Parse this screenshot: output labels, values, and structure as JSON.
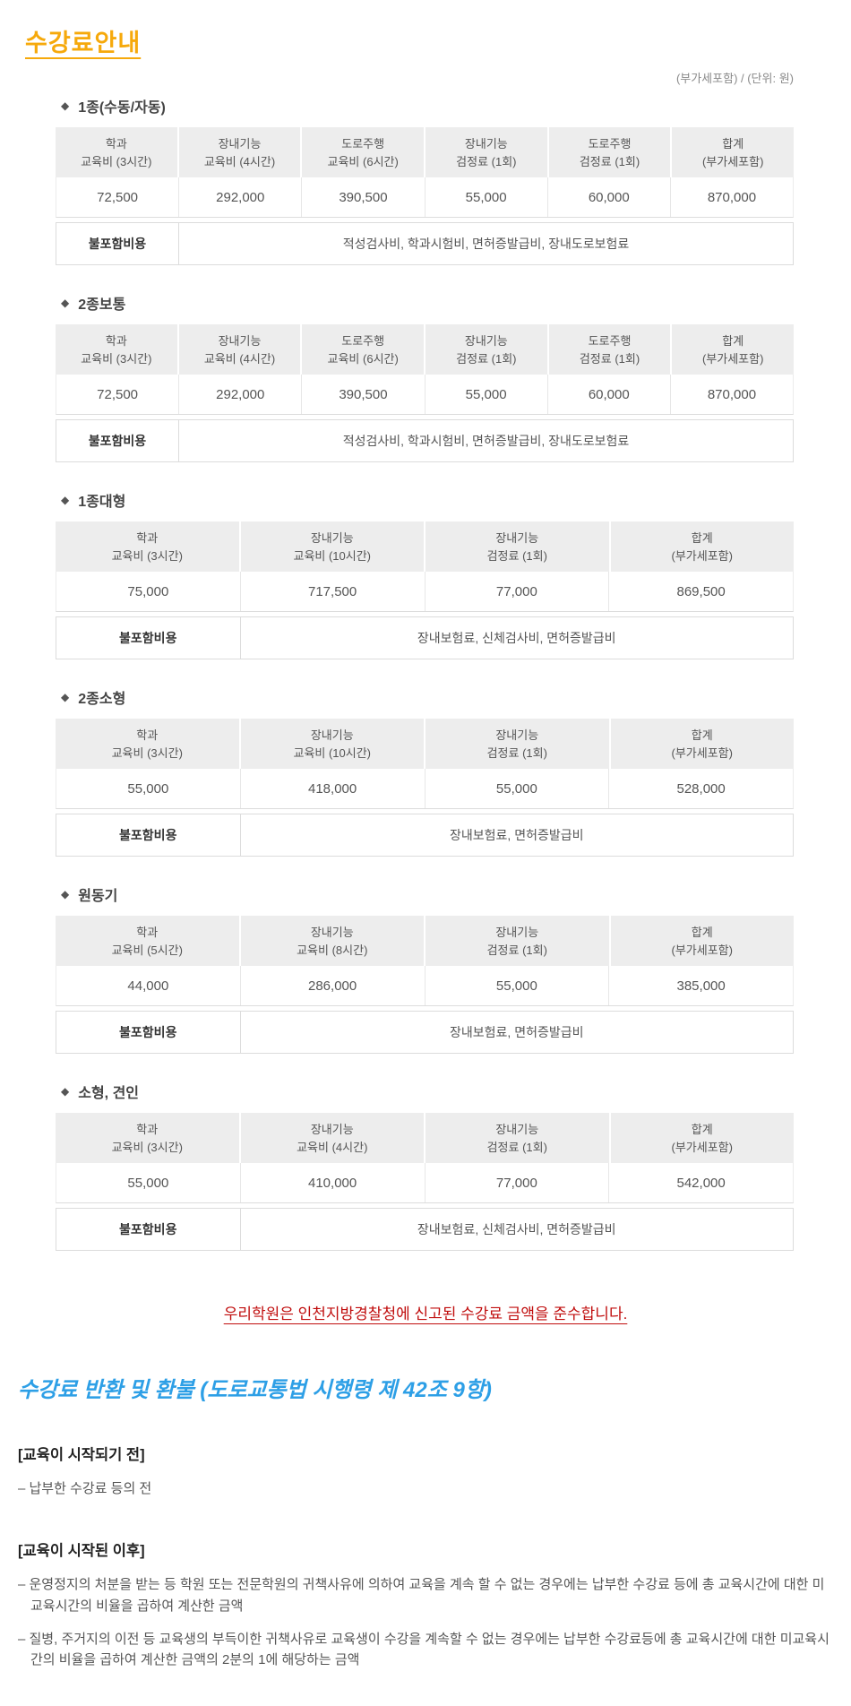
{
  "header": {
    "title": "수강료안내",
    "unit_note": "(부가세포함) / (단위: 원)"
  },
  "icons": {
    "section_bullet": "◆"
  },
  "labels": {
    "excluded_costs": "불포함비용"
  },
  "tables": [
    {
      "section": "1종(수동/자동)",
      "columns": [
        "학과\n교육비 (3시간)",
        "장내기능\n교육비 (4시간)",
        "도로주행\n교육비 (6시간)",
        "장내기능\n검정료 (1회)",
        "도로주행\n검정료 (1회)",
        "합계\n(부가세포함)"
      ],
      "values": [
        "72,500",
        "292,000",
        "390,500",
        "55,000",
        "60,000",
        "870,000"
      ],
      "excluded": "적성검사비, 학과시험비, 면허증발급비, 장내도로보험료"
    },
    {
      "section": "2종보통",
      "columns": [
        "학과\n교육비 (3시간)",
        "장내기능\n교육비 (4시간)",
        "도로주행\n교육비 (6시간)",
        "장내기능\n검정료 (1회)",
        "도로주행\n검정료 (1회)",
        "합계\n(부가세포함)"
      ],
      "values": [
        "72,500",
        "292,000",
        "390,500",
        "55,000",
        "60,000",
        "870,000"
      ],
      "excluded": "적성검사비, 학과시험비, 면허증발급비, 장내도로보험료"
    },
    {
      "section": "1종대형",
      "columns": [
        "학과\n교육비 (3시간)",
        "장내기능\n교육비 (10시간)",
        "장내기능\n검정료 (1회)",
        "합계\n(부가세포함)"
      ],
      "values": [
        "75,000",
        "717,500",
        "77,000",
        "869,500"
      ],
      "excluded": "장내보험료, 신체검사비, 면허증발급비"
    },
    {
      "section": "2종소형",
      "columns": [
        "학과\n교육비 (3시간)",
        "장내기능\n교육비 (10시간)",
        "장내기능\n검정료 (1회)",
        "합계\n(부가세포함)"
      ],
      "values": [
        "55,000",
        "418,000",
        "55,000",
        "528,000"
      ],
      "excluded": "장내보험료, 면허증발급비"
    },
    {
      "section": "원동기",
      "columns": [
        "학과\n교육비 (5시간)",
        "장내기능\n교육비 (8시간)",
        "장내기능\n검정료 (1회)",
        "합계\n(부가세포함)"
      ],
      "values": [
        "44,000",
        "286,000",
        "55,000",
        "385,000"
      ],
      "excluded": "장내보험료, 면허증발급비"
    },
    {
      "section": "소형, 견인",
      "columns": [
        "학과\n교육비 (3시간)",
        "장내기능\n교육비 (4시간)",
        "장내기능\n검정료 (1회)",
        "합계\n(부가세포함)"
      ],
      "values": [
        "55,000",
        "410,000",
        "77,000",
        "542,000"
      ],
      "excluded": "장내보험료, 신체검사비, 면허증발급비"
    }
  ],
  "notice": {
    "text": "우리학원은 인천지방경찰청에 신고된 수강료 금액을 준수합니다."
  },
  "refund": {
    "heading": "수강료 반환 및 환불 (도로교통법 시행령 제 42조 9항)",
    "before": {
      "title": "[교육이 시작되기 전]",
      "items": [
        "– 납부한 수강료 등의 전"
      ]
    },
    "after": {
      "title": "[교육이 시작된 이후]",
      "items": [
        "– 운영정지의 처분을 받는 등 학원 또는 전문학원의 귀책사유에 의하여 교육을 계속 할 수 없는 경우에는 납부한 수강료 등에 총 교육시간에 대한 미교육시간의 비율을 곱하여 계산한 금액",
        "– 질병, 주거지의 이전 등 교육생의 부득이한 귀책사유로 교육생이 수강을 계속할 수 없는 경우에는 납부한 수강료등에 총 교육시간에 대한 미교육시간의 비율을 곱하여 계산한 금액의 2분의 1에 해당하는 금액"
      ]
    }
  },
  "colors": {
    "title_orange": "#F6A90B",
    "notice_red": "#C00D0D",
    "refund_blue": "#2D9FE6",
    "header_bg": "#EDEDED",
    "table_border": "#DCDCDC"
  }
}
